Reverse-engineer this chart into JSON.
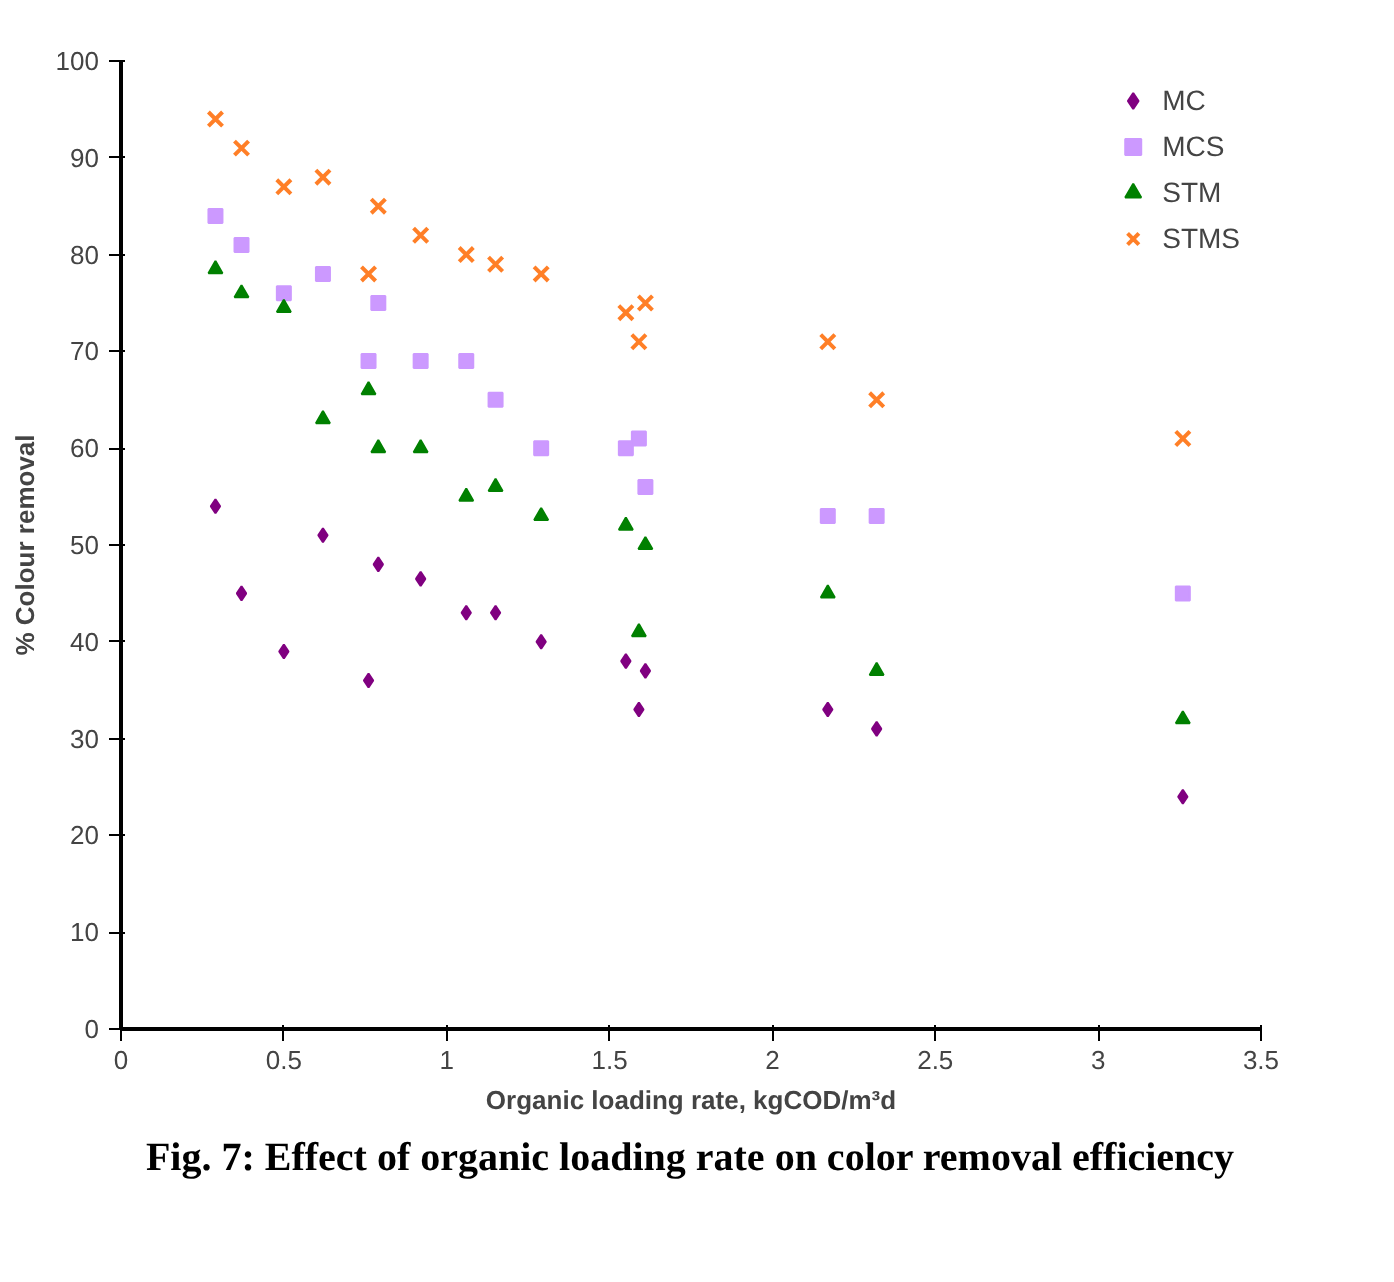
{
  "chart_data": {
    "type": "scatter",
    "xlabel": "Organic loading rate, kgCOD/m³d",
    "ylabel": "% Colour removal",
    "x": [
      0.29,
      0.37,
      0.5,
      0.62,
      0.76,
      0.79,
      0.92,
      1.06,
      1.15,
      1.29,
      1.55,
      1.59,
      1.61,
      2.17,
      2.32,
      3.26
    ],
    "series": [
      {
        "name": "MC",
        "color": "#800080",
        "marker": "diamond",
        "values": [
          54,
          45,
          39,
          51,
          36,
          48,
          46.5,
          43,
          43,
          40,
          38,
          33,
          37,
          33,
          31,
          24
        ]
      },
      {
        "name": "MCS",
        "color": "#cc99ff",
        "marker": "square",
        "values": [
          84,
          81,
          76,
          78,
          69,
          75,
          69,
          69,
          65,
          60,
          60,
          61,
          56,
          53,
          53,
          45
        ]
      },
      {
        "name": "STM",
        "color": "#008000",
        "marker": "triangle",
        "values": [
          78.5,
          76,
          74.5,
          63,
          66,
          60,
          60,
          55,
          56,
          53,
          52,
          41,
          50,
          45,
          37,
          32
        ]
      },
      {
        "name": "STMS",
        "color": "#ff7f27",
        "marker": "x",
        "values": [
          94,
          91,
          87,
          88,
          78,
          85,
          82,
          80,
          79,
          78,
          74,
          71,
          75,
          71,
          65,
          61
        ]
      }
    ],
    "xlim": [
      0,
      3.5
    ],
    "ylim": [
      0,
      100
    ],
    "xticks": [
      0,
      0.5,
      1,
      1.5,
      2,
      2.5,
      3,
      3.5
    ],
    "yticks": [
      0,
      10,
      20,
      30,
      40,
      50,
      60,
      70,
      80,
      90,
      100
    ],
    "grid": false,
    "legend": "top right",
    "annotations": [
      "Fig. 7: Effect of organic loading rate on color removal efficiency"
    ]
  }
}
